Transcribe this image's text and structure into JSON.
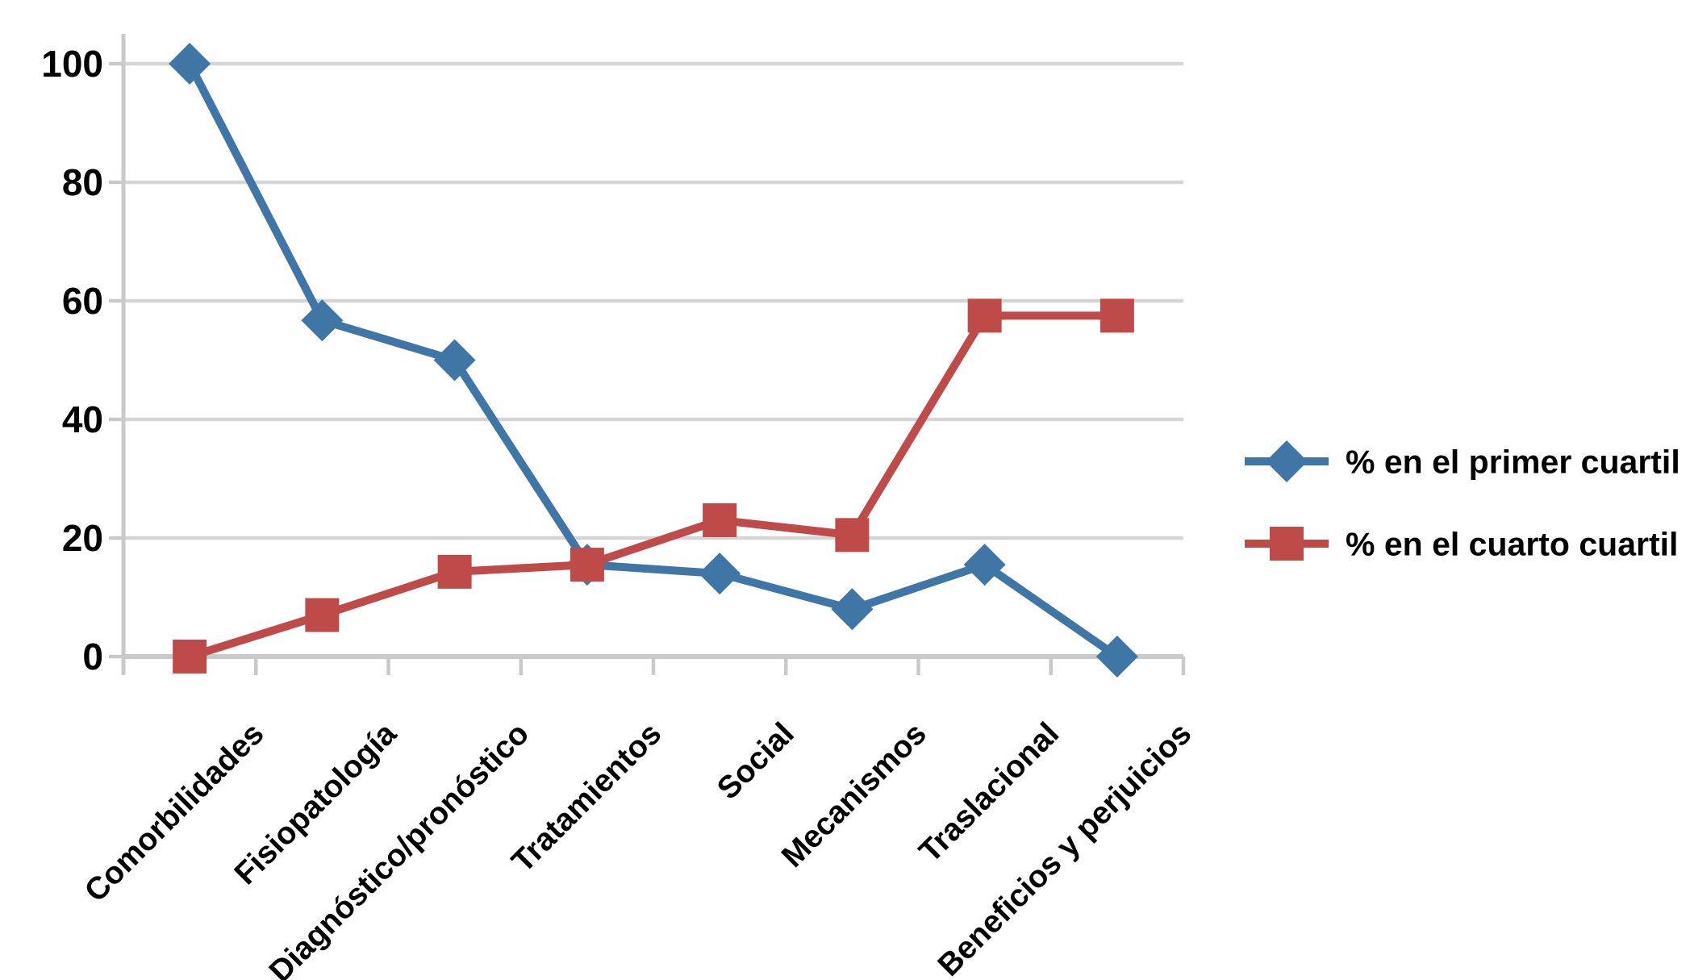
{
  "chart_data": {
    "type": "line",
    "title": "",
    "xlabel": "",
    "ylabel": "",
    "categories": [
      "Comorbilidades",
      "Fisiopatología",
      "Diagnóstico/pronóstico",
      "Tratamientos",
      "Social",
      "Mecanismos",
      "Traslacional",
      "Beneficios y perjuicios"
    ],
    "series": [
      {
        "name": "% en el primer cuartil",
        "marker": "diamond",
        "color": "#3F76A6",
        "values": [
          100,
          56.7,
          50,
          15.5,
          14,
          8,
          15.5,
          0
        ]
      },
      {
        "name": "% en el cuarto cuartil",
        "marker": "square",
        "color": "#BE4B49",
        "values": [
          0,
          7,
          14.3,
          15.5,
          23,
          20.5,
          57.5,
          57.5
        ]
      }
    ],
    "ylim": [
      0,
      100
    ],
    "yticks": [
      0,
      20,
      40,
      60,
      80,
      100
    ],
    "grid": true,
    "legend_position": "right"
  },
  "styling": {
    "grid_color": "#D5D5D5",
    "axis_color": "#C9C9C9",
    "text_color": "#000000",
    "background": "#FFFFFF"
  }
}
